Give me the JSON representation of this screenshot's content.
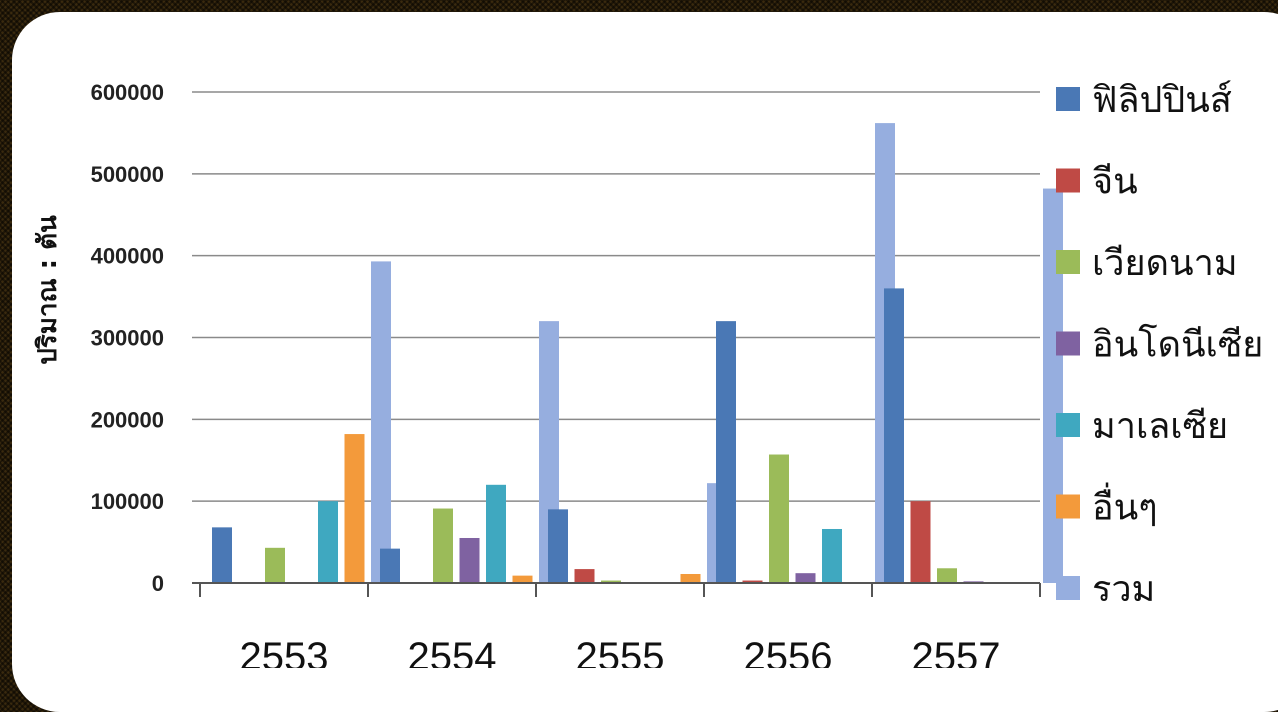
{
  "chart_data": {
    "type": "bar",
    "title": "",
    "xlabel": "",
    "ylabel": "ปริมาณ : ตัน",
    "ylim": [
      0,
      600000
    ],
    "yticks": [
      0,
      100000,
      200000,
      300000,
      400000,
      500000,
      600000
    ],
    "grid": true,
    "legend_position": "right",
    "categories": [
      "2553",
      "2554",
      "2555",
      "2556",
      "2557"
    ],
    "series": [
      {
        "name": "ฟิลิปปินส์",
        "color": "#4a78b5",
        "values": [
          68000,
          42000,
          90000,
          320000,
          360000
        ]
      },
      {
        "name": "จีน",
        "color": "#bf4a45",
        "values": [
          0,
          0,
          17000,
          3000,
          100000
        ]
      },
      {
        "name": "เวียดนาม",
        "color": "#9bbb59",
        "values": [
          43000,
          91000,
          3000,
          157000,
          18000
        ]
      },
      {
        "name": "อินโดนีเซีย",
        "color": "#7f62a1",
        "values": [
          0,
          55000,
          0,
          12000,
          2000
        ]
      },
      {
        "name": "มาเลเซีย",
        "color": "#3fa8c0",
        "values": [
          100000,
          120000,
          0,
          66000,
          0
        ]
      },
      {
        "name": "อื่นๆ",
        "color": "#f39a3b",
        "values": [
          182000,
          9000,
          11000,
          0,
          0
        ]
      },
      {
        "name": "รวม",
        "color": "#96aedf",
        "values": [
          393000,
          320000,
          122000,
          562000,
          482000
        ]
      }
    ]
  }
}
